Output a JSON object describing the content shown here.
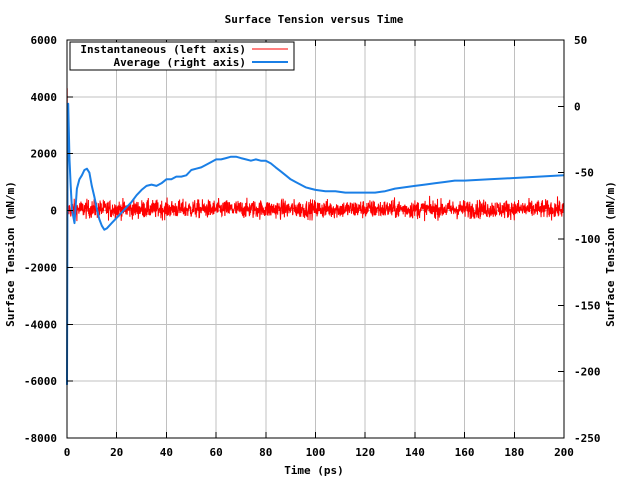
{
  "chart_data": {
    "type": "line",
    "title": "Surface Tension versus Time",
    "xlabel": "Time (ps)",
    "ylabel_left": "Surface Tension (mN/m)",
    "ylabel_right": "Surface Tension (mN/m)",
    "xlim": [
      0,
      200
    ],
    "ylim_left": [
      -8000,
      6000
    ],
    "ylim_right": [
      -250,
      50
    ],
    "x_ticks": [
      "0",
      "20",
      "40",
      "60",
      "80",
      "100",
      "120",
      "140",
      "160",
      "180",
      "200"
    ],
    "y_ticks_left": [
      "-8000",
      "-6000",
      "-4000",
      "-2000",
      "0",
      "2000",
      "4000",
      "6000"
    ],
    "y_ticks_right": [
      "-250",
      "-200",
      "-150",
      "-100",
      "-50",
      "0",
      "50"
    ],
    "grid": true,
    "legend_position": "top-left",
    "series": [
      {
        "name": "Instantaneous (left axis)",
        "axis": "left",
        "color": "#ff0000",
        "style": "noisy line",
        "mean": 50,
        "noise_amplitude": 500,
        "x_range": [
          0,
          200
        ],
        "early_spike": {
          "x": 0.3,
          "max": 4300,
          "min": -4000
        }
      },
      {
        "name": "Average (right axis)",
        "axis": "right",
        "color": "#1a7fe6",
        "x": [
          0,
          0.3,
          0.5,
          1,
          1.5,
          2,
          3,
          4,
          5,
          6,
          7,
          8,
          9,
          10,
          11,
          12,
          13,
          14,
          15,
          16,
          18,
          20,
          22,
          24,
          26,
          28,
          30,
          32,
          34,
          36,
          38,
          40,
          42,
          44,
          46,
          48,
          50,
          52,
          54,
          56,
          58,
          60,
          62,
          64,
          66,
          68,
          70,
          72,
          74,
          76,
          78,
          80,
          82,
          84,
          86,
          88,
          90,
          92,
          94,
          96,
          98,
          100,
          104,
          108,
          112,
          116,
          120,
          124,
          128,
          132,
          136,
          140,
          144,
          148,
          152,
          156,
          160,
          170,
          180,
          190,
          200
        ],
        "y": [
          -210,
          0,
          2,
          -40,
          -60,
          -78,
          -88,
          -62,
          -55,
          -52,
          -48,
          -47,
          -50,
          -60,
          -68,
          -77,
          -85,
          -90,
          -93,
          -92,
          -88,
          -84,
          -80,
          -76,
          -72,
          -67,
          -63,
          -60,
          -59,
          -60,
          -58,
          -55,
          -55,
          -53,
          -53,
          -52,
          -48,
          -47,
          -46,
          -44,
          -42,
          -40,
          -40,
          -39,
          -38,
          -38,
          -39,
          -40,
          -41,
          -40,
          -41,
          -41,
          -43,
          -46,
          -49,
          -52,
          -55,
          -57,
          -59,
          -61,
          -62,
          -63,
          -64,
          -64,
          -65,
          -65,
          -65,
          -65,
          -64,
          -62,
          -61,
          -60,
          -59,
          -58,
          -57,
          -56,
          -56,
          -55,
          -54,
          -53,
          -52
        ]
      }
    ]
  }
}
